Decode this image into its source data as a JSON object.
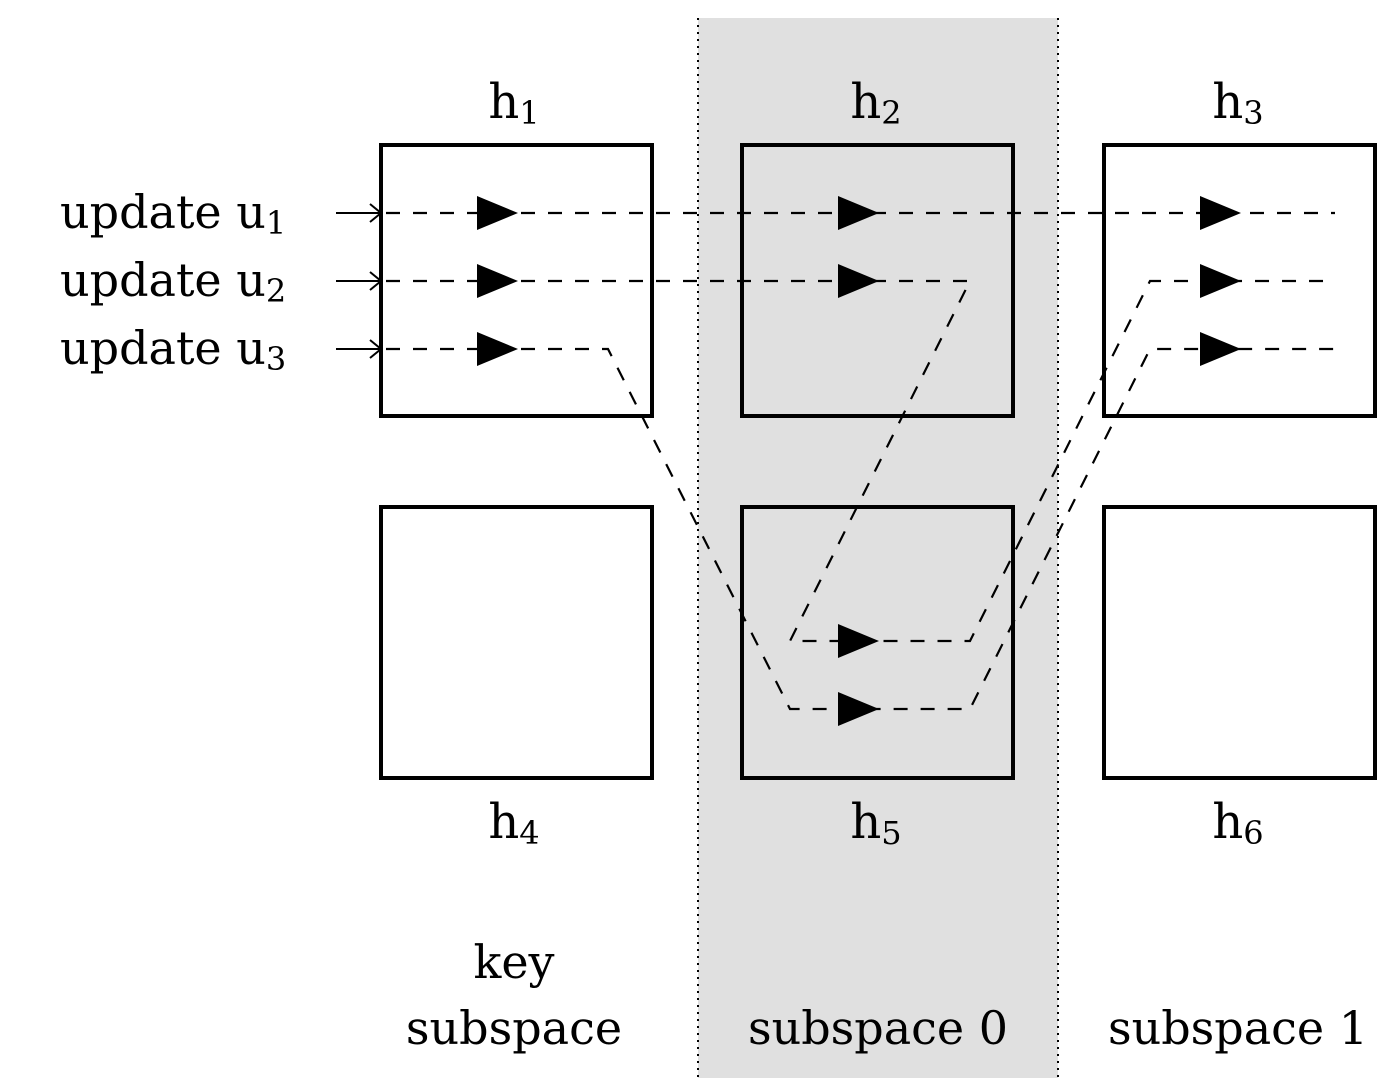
{
  "colors": {
    "shade": "#e0e0e0",
    "box_white": "#ffffff",
    "box_shaded": "#e0e0e0",
    "stroke": "#000000"
  },
  "nodes": {
    "h1": {
      "base": "h",
      "index": "1"
    },
    "h2": {
      "base": "h",
      "index": "2"
    },
    "h3": {
      "base": "h",
      "index": "3"
    },
    "h4": {
      "base": "h",
      "index": "4"
    },
    "h5": {
      "base": "h",
      "index": "5"
    },
    "h6": {
      "base": "h",
      "index": "6"
    }
  },
  "updates": [
    {
      "prefix": "update u",
      "index": "1",
      "route": [
        "h1",
        "h2",
        "h3"
      ]
    },
    {
      "prefix": "update u",
      "index": "2",
      "route": [
        "h1",
        "h2",
        "h5",
        "h3"
      ]
    },
    {
      "prefix": "update u",
      "index": "3",
      "route": [
        "h1",
        "h5",
        "h3"
      ]
    }
  ],
  "regions": {
    "key": {
      "line1": "key",
      "line2": "subspace"
    },
    "sub0": {
      "label": "subspace 0"
    },
    "sub1": {
      "label": "subspace 1"
    }
  }
}
